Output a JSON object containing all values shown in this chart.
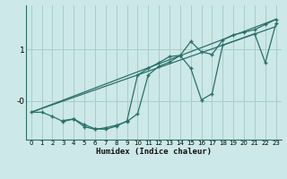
{
  "bg_color": "#cce8e8",
  "grid_color": "#aacccc",
  "line_color": "#2a7068",
  "xlabel": "Humidex (Indice chaleur)",
  "xlim": [
    -0.5,
    23.5
  ],
  "ylim": [
    -0.75,
    1.85
  ],
  "ytick_positions": [
    0.0,
    1.0
  ],
  "ytick_labels": [
    "-0",
    "1"
  ],
  "xticks": [
    0,
    1,
    2,
    3,
    4,
    5,
    6,
    7,
    8,
    9,
    10,
    11,
    12,
    13,
    14,
    15,
    16,
    17,
    18,
    19,
    20,
    21,
    22,
    23
  ],
  "line1_x": [
    0,
    1,
    2,
    3,
    4,
    5,
    6,
    7,
    8,
    9,
    10,
    11,
    12,
    13,
    14,
    15,
    16,
    17,
    18,
    19,
    20,
    21,
    22,
    23
  ],
  "line1_y": [
    -0.22,
    -0.22,
    -0.3,
    -0.4,
    -0.35,
    -0.5,
    -0.55,
    -0.52,
    -0.47,
    -0.4,
    -0.25,
    0.5,
    0.67,
    0.75,
    0.88,
    1.15,
    0.95,
    0.9,
    1.18,
    1.28,
    1.33,
    1.38,
    1.48,
    1.58
  ],
  "line2_x": [
    3,
    4,
    5,
    6,
    7,
    8,
    9,
    10,
    11,
    12,
    13,
    14,
    15,
    16,
    17,
    18,
    21,
    22,
    23
  ],
  "line2_y": [
    -0.38,
    -0.35,
    -0.46,
    -0.54,
    -0.55,
    -0.49,
    -0.39,
    0.5,
    0.63,
    0.74,
    0.86,
    0.88,
    0.63,
    0.02,
    0.14,
    1.08,
    1.3,
    0.74,
    1.5
  ],
  "line3_x": [
    0,
    23
  ],
  "line3_y": [
    -0.22,
    1.58
  ],
  "line4_x": [
    0,
    23
  ],
  "line4_y": [
    -0.22,
    1.44
  ]
}
